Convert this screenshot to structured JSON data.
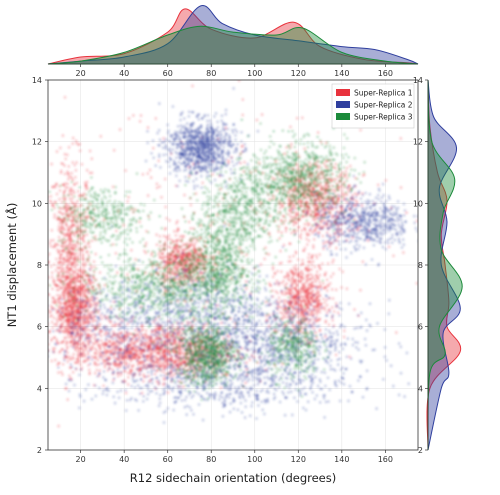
{
  "chart_data": {
    "type": "scatter",
    "title": "",
    "xlabel": "R12 sidechain orientation (degrees)",
    "ylabel": "NT1 displacement (Å)",
    "xlim": [
      5,
      175
    ],
    "ylim": [
      2,
      14
    ],
    "x_ticks": [
      "20",
      "40",
      "60",
      "80",
      "100",
      "120",
      "140",
      "160"
    ],
    "y_ticks": [
      "2",
      "4",
      "6",
      "8",
      "10",
      "12",
      "14"
    ],
    "top_marginal_ticks": [
      "20",
      "40",
      "60",
      "80",
      "100",
      "120",
      "140",
      "160"
    ],
    "right_marginal_ticks": [
      "2",
      "4",
      "6",
      "8",
      "10",
      "12",
      "14"
    ],
    "legend_position": "top-right",
    "grid": true,
    "series": [
      {
        "name": "Super-Replica 1",
        "color": "#e8323c",
        "clusters": [
          {
            "x": 15,
            "y": 8.2,
            "sx": 5,
            "sy": 1.6,
            "w": 0.9
          },
          {
            "x": 18,
            "y": 6.5,
            "sx": 5,
            "sy": 0.7,
            "w": 0.8
          },
          {
            "x": 63,
            "y": 5.2,
            "sx": 14,
            "sy": 0.45,
            "w": 1.0
          },
          {
            "x": 67,
            "y": 8.1,
            "sx": 6,
            "sy": 0.4,
            "w": 0.6
          },
          {
            "x": 122,
            "y": 6.9,
            "sx": 6,
            "sy": 0.6,
            "w": 0.7
          },
          {
            "x": 128,
            "y": 10.1,
            "sx": 9,
            "sy": 0.6,
            "w": 0.8
          },
          {
            "x": 40,
            "y": 5.2,
            "sx": 12,
            "sy": 0.4,
            "w": 0.5
          },
          {
            "x": 90,
            "y": 9.0,
            "sx": 40,
            "sy": 2.2,
            "w": 0.4
          }
        ],
        "top_marginal": [
          [
            20,
            0.12
          ],
          [
            40,
            0.18
          ],
          [
            60,
            0.55
          ],
          [
            68,
            0.95
          ],
          [
            80,
            0.6
          ],
          [
            100,
            0.45
          ],
          [
            118,
            0.72
          ],
          [
            130,
            0.3
          ],
          [
            150,
            0.08
          ],
          [
            170,
            0.02
          ]
        ],
        "right_marginal": [
          [
            4,
            0.05
          ],
          [
            5.2,
            0.85
          ],
          [
            6.0,
            0.5
          ],
          [
            6.8,
            0.55
          ],
          [
            8.0,
            0.45
          ],
          [
            9.0,
            0.35
          ],
          [
            10.1,
            0.5
          ],
          [
            11.0,
            0.25
          ],
          [
            12.5,
            0.05
          ]
        ]
      },
      {
        "name": "Super-Replica 2",
        "color": "#2f3f9e",
        "clusters": [
          {
            "x": 75,
            "y": 11.8,
            "sx": 8,
            "sy": 0.45,
            "w": 1.0
          },
          {
            "x": 85,
            "y": 4.3,
            "sx": 30,
            "sy": 0.55,
            "w": 0.9
          },
          {
            "x": 78,
            "y": 6.4,
            "sx": 22,
            "sy": 0.8,
            "w": 0.8
          },
          {
            "x": 150,
            "y": 9.4,
            "sx": 11,
            "sy": 0.45,
            "w": 0.7
          },
          {
            "x": 110,
            "y": 5.6,
            "sx": 22,
            "sy": 0.6,
            "w": 0.6
          },
          {
            "x": 40,
            "y": 6.1,
            "sx": 18,
            "sy": 0.6,
            "w": 0.4
          }
        ],
        "top_marginal": [
          [
            20,
            0.05
          ],
          [
            40,
            0.12
          ],
          [
            60,
            0.35
          ],
          [
            75,
            1.0
          ],
          [
            85,
            0.7
          ],
          [
            100,
            0.5
          ],
          [
            120,
            0.4
          ],
          [
            140,
            0.3
          ],
          [
            155,
            0.25
          ],
          [
            170,
            0.08
          ]
        ],
        "right_marginal": [
          [
            4,
            0.35
          ],
          [
            4.5,
            0.55
          ],
          [
            5.8,
            0.4
          ],
          [
            6.6,
            0.85
          ],
          [
            8.0,
            0.35
          ],
          [
            9.4,
            0.5
          ],
          [
            10.5,
            0.3
          ],
          [
            11.8,
            0.75
          ],
          [
            12.8,
            0.15
          ]
        ]
      },
      {
        "name": "Super-Replica 3",
        "color": "#1b8a3a",
        "clusters": [
          {
            "x": 60,
            "y": 7.3,
            "sx": 20,
            "sy": 0.55,
            "w": 1.0
          },
          {
            "x": 78,
            "y": 5.1,
            "sx": 7,
            "sy": 0.5,
            "w": 0.9
          },
          {
            "x": 120,
            "y": 10.8,
            "sx": 11,
            "sy": 0.6,
            "w": 0.9
          },
          {
            "x": 93,
            "y": 9.7,
            "sx": 9,
            "sy": 0.7,
            "w": 0.6
          },
          {
            "x": 30,
            "y": 9.6,
            "sx": 10,
            "sy": 0.5,
            "w": 0.4
          },
          {
            "x": 82,
            "y": 8.1,
            "sx": 7,
            "sy": 0.7,
            "w": 0.6
          },
          {
            "x": 118,
            "y": 5.3,
            "sx": 6,
            "sy": 0.5,
            "w": 0.4
          }
        ],
        "top_marginal": [
          [
            20,
            0.05
          ],
          [
            40,
            0.2
          ],
          [
            60,
            0.5
          ],
          [
            75,
            0.65
          ],
          [
            90,
            0.55
          ],
          [
            110,
            0.5
          ],
          [
            122,
            0.62
          ],
          [
            140,
            0.2
          ],
          [
            160,
            0.05
          ]
        ],
        "right_marginal": [
          [
            4.5,
            0.05
          ],
          [
            5.1,
            0.45
          ],
          [
            6.0,
            0.3
          ],
          [
            7.3,
            0.9
          ],
          [
            8.5,
            0.35
          ],
          [
            9.7,
            0.4
          ],
          [
            10.8,
            0.7
          ],
          [
            12,
            0.1
          ]
        ]
      }
    ]
  }
}
